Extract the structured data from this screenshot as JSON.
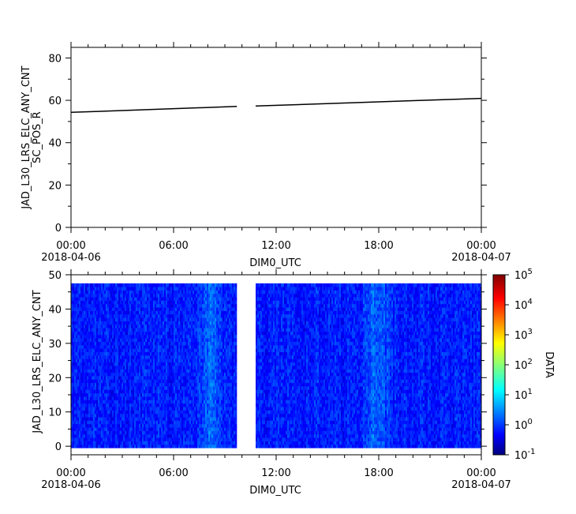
{
  "chart_data": [
    {
      "type": "line",
      "ylabel_lines": [
        "JAD_L30_LRS_ELC_ANY_CNT",
        "SC_POS_R"
      ],
      "xlabel": "DIM0_UTC",
      "ylim": [
        0,
        85
      ],
      "yticks": [
        0,
        20,
        40,
        60,
        80
      ],
      "xlim_hours": [
        0,
        24
      ],
      "xticks": [
        {
          "hour": 0,
          "label": "00:00",
          "date": "2018-04-06"
        },
        {
          "hour": 6,
          "label": "06:00",
          "date": ""
        },
        {
          "hour": 12,
          "label": "12:00",
          "date": ""
        },
        {
          "hour": 18,
          "label": "18:00",
          "date": ""
        },
        {
          "hour": 24,
          "label": "00:00",
          "date": "2018-04-07"
        }
      ],
      "series": [
        {
          "segments": [
            [
              {
                "x": 0,
                "y": 54.3
              },
              {
                "x": 9.7,
                "y": 57.1
              }
            ],
            [
              {
                "x": 10.8,
                "y": 57.3
              },
              {
                "x": 24,
                "y": 60.9
              }
            ]
          ]
        }
      ],
      "grid": false
    },
    {
      "type": "heatmap",
      "ylabel": "JAD_L30_LRS_ELC_ANY_CNT",
      "xlabel": "DIM0_UTC",
      "ylim": [
        -2.5,
        50
      ],
      "yticks": [
        0,
        10,
        20,
        30,
        40,
        50
      ],
      "y_bins": [
        0,
        47
      ],
      "xlim_hours": [
        0,
        24
      ],
      "xticks": [
        {
          "hour": 0,
          "label": "00:00",
          "date": "2018-04-06"
        },
        {
          "hour": 6,
          "label": "06:00",
          "date": ""
        },
        {
          "hour": 12,
          "label": "12:00",
          "date": ""
        },
        {
          "hour": 18,
          "label": "18:00",
          "date": ""
        },
        {
          "hour": 24,
          "label": "00:00",
          "date": "2018-04-07"
        }
      ],
      "data_gap_hours": [
        9.7,
        10.8
      ],
      "enhancement_bands_hours": [
        {
          "center": 8.1,
          "width": 0.6
        },
        {
          "center": 17.9,
          "width": 0.7
        }
      ],
      "typical_log10_value": -0.1,
      "colorbar": {
        "label": "DATA",
        "scale": "log",
        "range_log10": [
          -1,
          5
        ],
        "ticks": [
          {
            "exp": -1,
            "base": "10",
            "sup": "-1"
          },
          {
            "exp": 0,
            "base": "10",
            "sup": "0"
          },
          {
            "exp": 1,
            "base": "10",
            "sup": "1"
          },
          {
            "exp": 2,
            "base": "10",
            "sup": "2"
          },
          {
            "exp": 3,
            "base": "10",
            "sup": "3"
          },
          {
            "exp": 4,
            "base": "10",
            "sup": "4"
          },
          {
            "exp": 5,
            "base": "10",
            "sup": "5"
          }
        ],
        "colormap": "jet"
      },
      "grid": false
    }
  ]
}
